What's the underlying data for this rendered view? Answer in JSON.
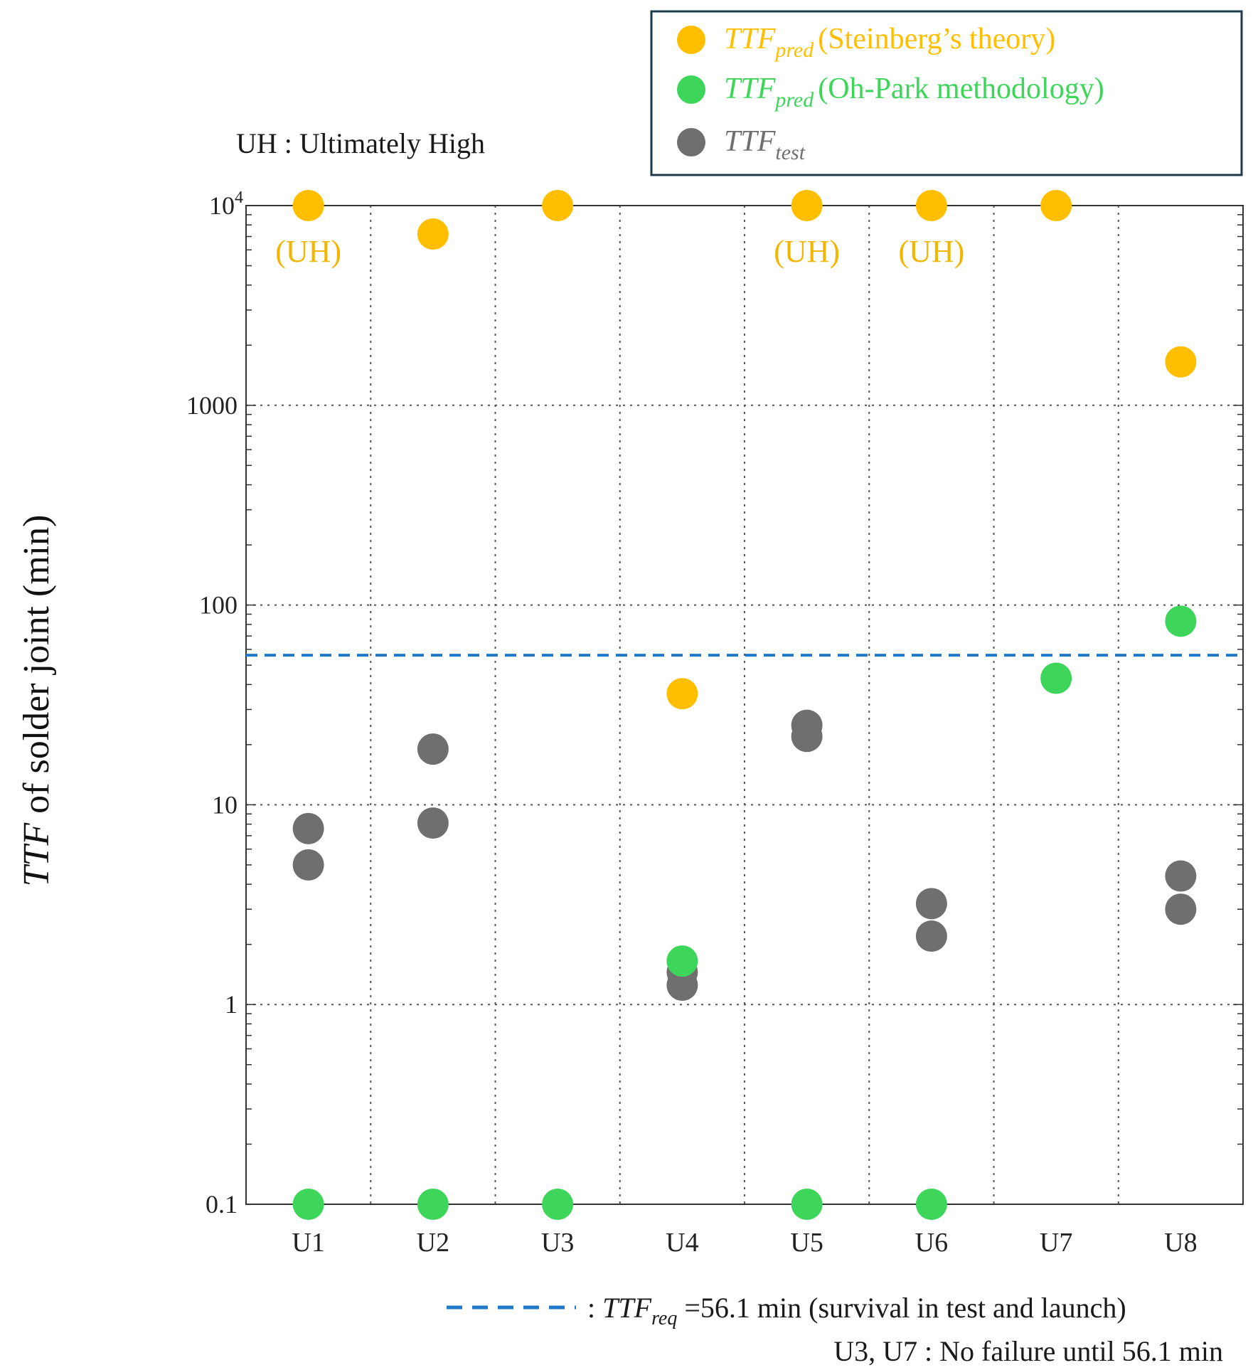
{
  "chart_data": {
    "type": "scatter",
    "title": "",
    "xlabel": "",
    "ylabel_italic": "TTF",
    "ylabel_rest": " of solder joint (min)",
    "yscale": "log",
    "ylim": [
      0.1,
      10000
    ],
    "yticks": [
      {
        "value": 0.1,
        "label": "0.1"
      },
      {
        "value": 1,
        "label": "1"
      },
      {
        "value": 10,
        "label": "10"
      },
      {
        "value": 100,
        "label": "100"
      },
      {
        "value": 1000,
        "label": "1000"
      },
      {
        "value": 10000,
        "label": "10",
        "exponent": "4"
      }
    ],
    "categories": [
      "U1",
      "U2",
      "U3",
      "U4",
      "U5",
      "U6",
      "U7",
      "U8"
    ],
    "series": [
      {
        "name": "TTF_pred (Steinberg's theory)",
        "color": "#ffbf00",
        "points": [
          {
            "cat": "U1",
            "y": 10000
          },
          {
            "cat": "U2",
            "y": 7200
          },
          {
            "cat": "U3",
            "y": 10000
          },
          {
            "cat": "U4",
            "y": 36
          },
          {
            "cat": "U5",
            "y": 10000
          },
          {
            "cat": "U6",
            "y": 10000
          },
          {
            "cat": "U7",
            "y": 10000
          },
          {
            "cat": "U8",
            "y": 1650
          }
        ]
      },
      {
        "name": "TTF_pred (Oh-Park methodology)",
        "color": "#3dd65a",
        "points": [
          {
            "cat": "U1",
            "y": 0.1
          },
          {
            "cat": "U2",
            "y": 0.1
          },
          {
            "cat": "U3",
            "y": 0.1
          },
          {
            "cat": "U4",
            "y": 1.65
          },
          {
            "cat": "U5",
            "y": 0.1
          },
          {
            "cat": "U6",
            "y": 0.1
          },
          {
            "cat": "U7",
            "y": 43
          },
          {
            "cat": "U8",
            "y": 83
          }
        ]
      },
      {
        "name": "TTF_test",
        "color": "#6f6f6f",
        "points": [
          {
            "cat": "U1",
            "y": 7.6
          },
          {
            "cat": "U1",
            "y": 5.0
          },
          {
            "cat": "U2",
            "y": 19
          },
          {
            "cat": "U2",
            "y": 8.1
          },
          {
            "cat": "U4",
            "y": 1.45
          },
          {
            "cat": "U4",
            "y": 1.25
          },
          {
            "cat": "U5",
            "y": 25
          },
          {
            "cat": "U5",
            "y": 22
          },
          {
            "cat": "U6",
            "y": 3.2
          },
          {
            "cat": "U6",
            "y": 2.2
          },
          {
            "cat": "U8",
            "y": 4.4
          },
          {
            "cat": "U8",
            "y": 3.0
          }
        ]
      }
    ],
    "reference_line": {
      "value": 56.1,
      "color": "#1f78c8",
      "style": "dashed"
    },
    "annotations": [
      {
        "cat": "U1",
        "text": "(UH)"
      },
      {
        "cat": "U5",
        "text": "(UH)"
      },
      {
        "cat": "U6",
        "text": "(UH)"
      }
    ],
    "grid": true,
    "legend": {
      "position": "top-right",
      "entries": [
        {
          "base": "TTF",
          "sub": "pred",
          "text": "(Steinberg’s  theory)",
          "color": "#ffbf00"
        },
        {
          "base": "TTF",
          "sub": "pred",
          "text": "(Oh-Park methodology)",
          "color": "#3dd65a"
        },
        {
          "base": "TTF",
          "sub": "test",
          "text": "",
          "color": "#6f6f6f"
        }
      ]
    },
    "uh_note": "UH : Ultimately High",
    "footnote_line": {
      "prefix": ": ",
      "base": "TTF",
      "sub": "req",
      "text": " =56.1 min (survival in test and launch)"
    },
    "footnote_2": "U3, U7 : No failure until 56.1 min"
  }
}
